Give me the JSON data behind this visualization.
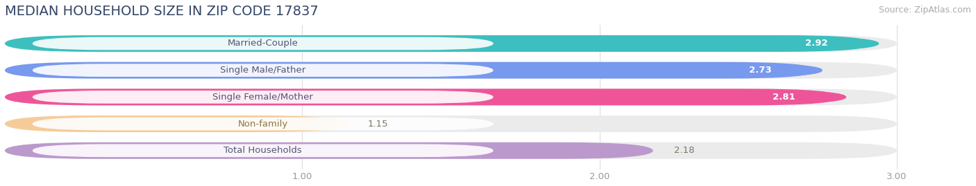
{
  "title": "MEDIAN HOUSEHOLD SIZE IN ZIP CODE 17837",
  "source": "Source: ZipAtlas.com",
  "categories": [
    "Married-Couple",
    "Single Male/Father",
    "Single Female/Mother",
    "Non-family",
    "Total Households"
  ],
  "values": [
    2.92,
    2.73,
    2.81,
    1.15,
    2.18
  ],
  "bar_colors": [
    "#3dbfbf",
    "#7799ee",
    "#ee5599",
    "#f5cc99",
    "#bb99cc"
  ],
  "label_text_colors": [
    "#555577",
    "#555577",
    "#555577",
    "#887744",
    "#555577"
  ],
  "value_label_colors": [
    "white",
    "white",
    "white",
    "#777755",
    "#777755"
  ],
  "xlim": [
    0.0,
    3.25
  ],
  "xmin": 0.0,
  "xmax": 3.0,
  "xticks": [
    1.0,
    2.0,
    3.0
  ],
  "xtick_labels": [
    "1.00",
    "2.00",
    "3.00"
  ],
  "background_color": "#ffffff",
  "bar_background": "#ebebeb",
  "bar_gap_color": "#f5f5f8",
  "title_fontsize": 14,
  "label_fontsize": 9.5,
  "value_fontsize": 9.5,
  "source_fontsize": 9
}
